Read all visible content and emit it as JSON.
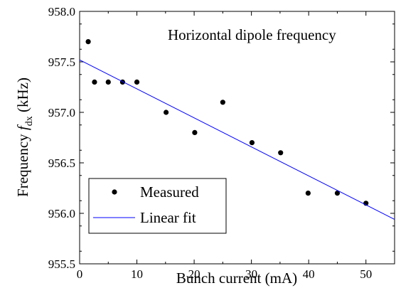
{
  "chart_data": {
    "type": "scatter",
    "annotation": "Horizontal dipole frequency",
    "xlabel": "Bunch current (mA)",
    "ylabel": {
      "prefix": "Frequency ",
      "symbol": "f",
      "subscript": "dx",
      "suffix": " (kHz)"
    },
    "xlim": [
      0,
      55
    ],
    "ylim": [
      955.5,
      958.0
    ],
    "x_ticks": [
      0,
      10,
      20,
      30,
      40,
      50
    ],
    "y_ticks": [
      955.5,
      956.0,
      956.5,
      957.0,
      957.5,
      958.0
    ],
    "x_tick_labels": [
      "0",
      "10",
      "20",
      "30",
      "40",
      "50"
    ],
    "y_tick_labels": [
      "955.5",
      "956.0",
      "956.5",
      "957.0",
      "957.5",
      "958.0"
    ],
    "series": [
      {
        "name": "Measured",
        "kind": "scatter",
        "color": "#000000",
        "points": [
          {
            "x": 1.5,
            "y": 957.7
          },
          {
            "x": 2.6,
            "y": 957.3
          },
          {
            "x": 5.0,
            "y": 957.3
          },
          {
            "x": 7.5,
            "y": 957.3
          },
          {
            "x": 10.0,
            "y": 957.3
          },
          {
            "x": 15.1,
            "y": 957.0
          },
          {
            "x": 20.1,
            "y": 956.8
          },
          {
            "x": 25.0,
            "y": 957.1
          },
          {
            "x": 30.1,
            "y": 956.7
          },
          {
            "x": 35.1,
            "y": 956.6
          },
          {
            "x": 39.9,
            "y": 956.2
          },
          {
            "x": 45.0,
            "y": 956.2
          },
          {
            "x": 50.0,
            "y": 956.1
          }
        ]
      },
      {
        "name": "Linear fit",
        "kind": "line",
        "color": "#0000ff",
        "points": [
          {
            "x": 0,
            "y": 957.52
          },
          {
            "x": 55,
            "y": 955.94
          }
        ]
      }
    ],
    "legend": {
      "placement": "bottom-left",
      "entries": [
        "Measured",
        "Linear fit"
      ]
    },
    "grid": false
  }
}
